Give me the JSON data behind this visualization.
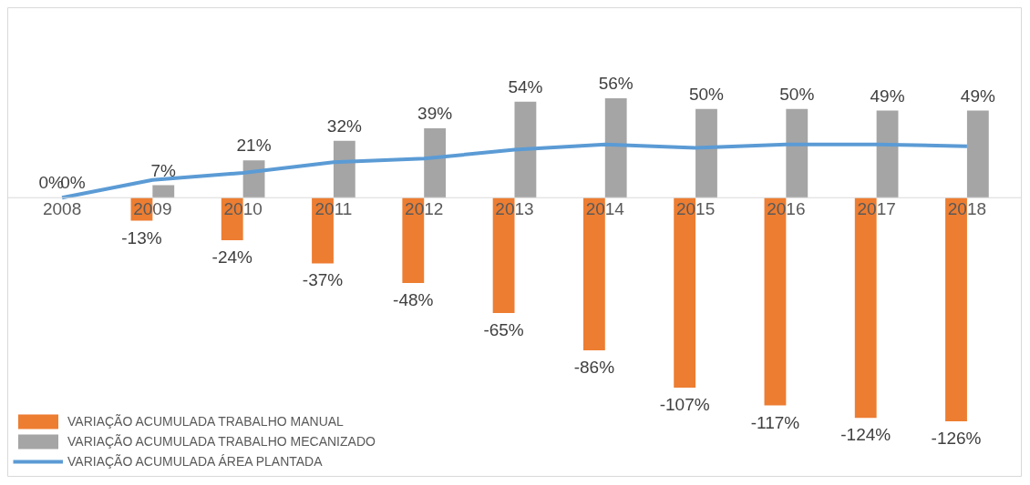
{
  "chart_data": {
    "type": "bar",
    "categories": [
      "2008",
      "2009",
      "2010",
      "2011",
      "2012",
      "2013",
      "2014",
      "2015",
      "2016",
      "2017",
      "2018"
    ],
    "series": [
      {
        "name": "VARIAÇÃO ACUMULADA TRABALHO MANUAL",
        "color": "#ed7d31",
        "values": [
          0,
          -13,
          -24,
          -37,
          -48,
          -65,
          -86,
          -107,
          -117,
          -124,
          -126
        ],
        "value_labels": [
          "0%",
          "-13%",
          "-24%",
          "-37%",
          "-48%",
          "-65%",
          "-86%",
          "-107%",
          "-117%",
          "-124%",
          "-126%"
        ]
      },
      {
        "name": "VARIAÇÃO ACUMULADA TRABALHO MECANIZADO",
        "color": "#a5a5a5",
        "values": [
          0,
          7,
          21,
          32,
          39,
          54,
          56,
          50,
          50,
          49,
          49
        ],
        "value_labels": [
          "0%",
          "7%",
          "21%",
          "32%",
          "39%",
          "54%",
          "56%",
          "50%",
          "50%",
          "49%",
          "49%"
        ]
      },
      {
        "name": "VARIAÇÃO ACUMULADA ÁREA PLANTADA",
        "type": "line",
        "color": "#5b9bd5",
        "values": [
          0,
          10,
          14,
          20,
          22,
          27,
          30,
          28,
          30,
          30,
          29
        ]
      }
    ],
    "legend": "bottom left",
    "grid": false
  }
}
